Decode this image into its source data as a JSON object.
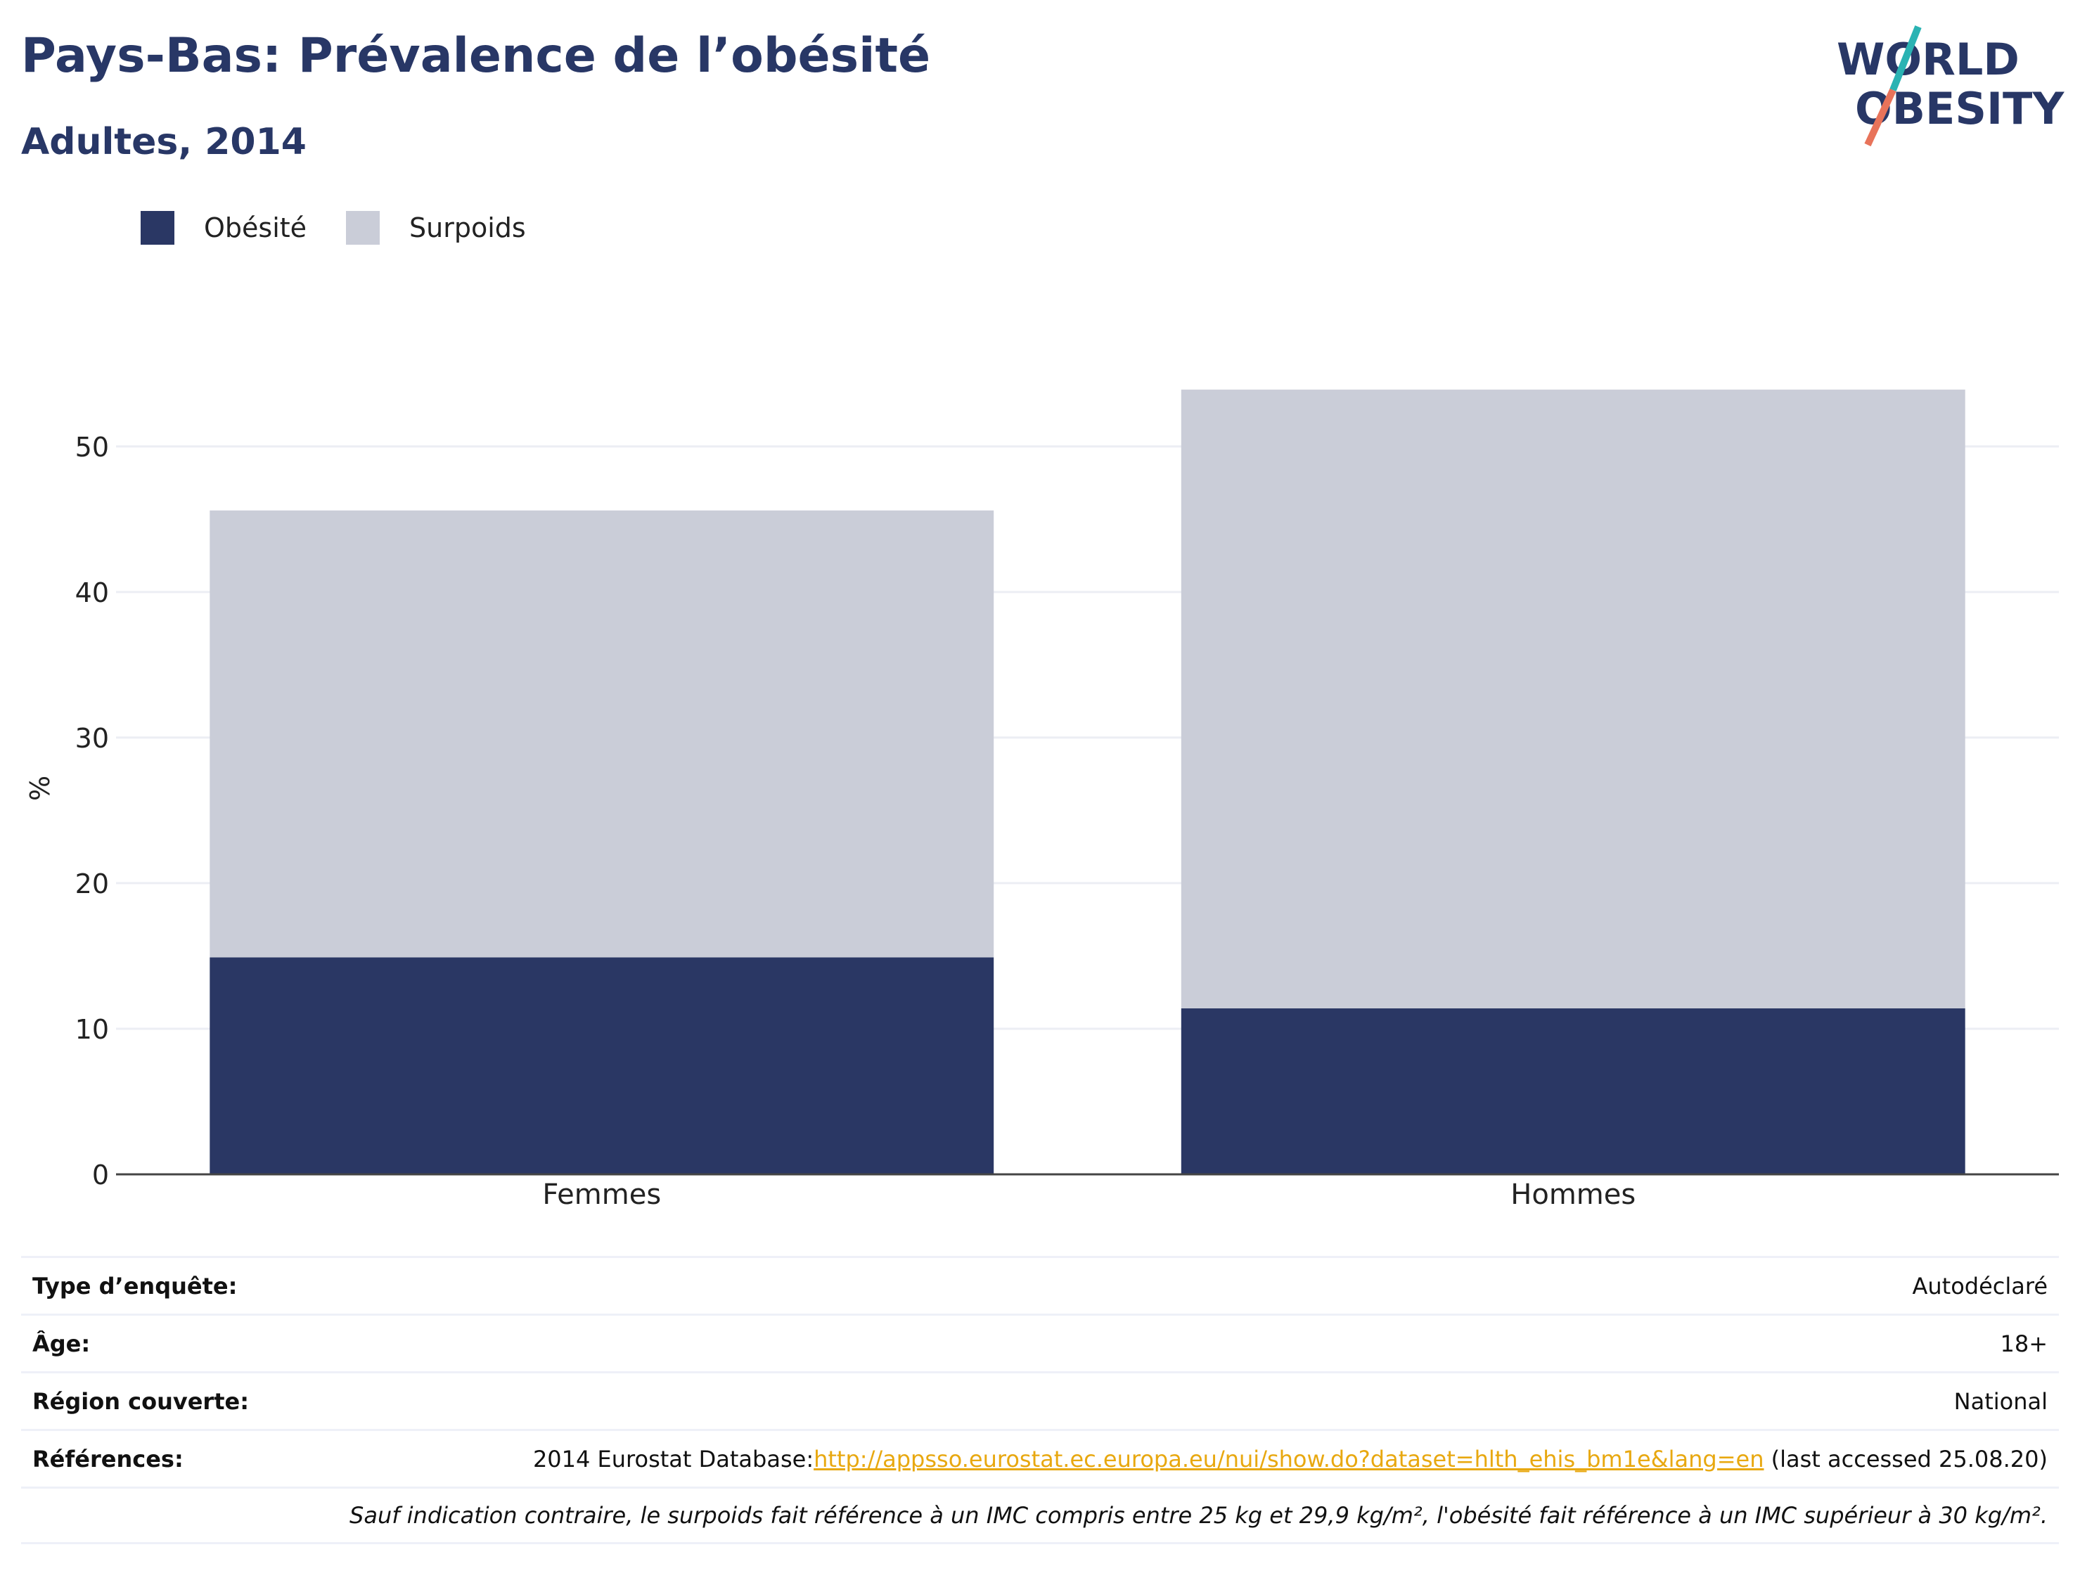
{
  "header": {
    "title": "Pays-Bas: Prévalence de l’obésité",
    "subtitle": "Adultes, 2014"
  },
  "logo": {
    "line1": "WORLD",
    "line2": "OBESITY",
    "icon": "world-obesity-logo",
    "slash_color_top": "#2ab3b3",
    "slash_color_bottom": "#e8735a"
  },
  "legend": [
    {
      "label": "Obésité",
      "color": "#2a3764"
    },
    {
      "label": "Surpoids",
      "color": "#cacdd8"
    }
  ],
  "chart_data": {
    "type": "bar",
    "stacked": true,
    "categories": [
      "Femmes",
      "Hommes"
    ],
    "series": [
      {
        "name": "Obésité",
        "values": [
          14.9,
          11.4
        ],
        "color": "#2a3764"
      },
      {
        "name": "Surpoids",
        "values": [
          30.7,
          42.5
        ],
        "color": "#cacdd8"
      }
    ],
    "title": "",
    "xlabel": "",
    "ylabel": "%",
    "ylim": [
      0,
      54
    ],
    "yticks": [
      0,
      10,
      20,
      30,
      40,
      50
    ],
    "grid": true,
    "legend_position": "top-left"
  },
  "info": {
    "rows": [
      {
        "key": "Type d’enquête:",
        "value": "Autodéclaré"
      },
      {
        "key": "Âge:",
        "value": "18+"
      },
      {
        "key": "Région couverte:",
        "value": "National"
      }
    ],
    "references": {
      "key": "Références:",
      "prefix": "2014 Eurostat Database:",
      "link": "http://appsso.eurostat.ec.europa.eu/nui/show.do?dataset=hlth_ehis_bm1e&lang=en",
      "suffix": " (last accessed 25.08.20)"
    },
    "note": "Sauf indication contraire, le surpoids fait référence à un IMC compris entre 25 kg et 29,9 kg/m², l'obésité fait référence à un IMC supérieur à 30 kg/m²."
  }
}
